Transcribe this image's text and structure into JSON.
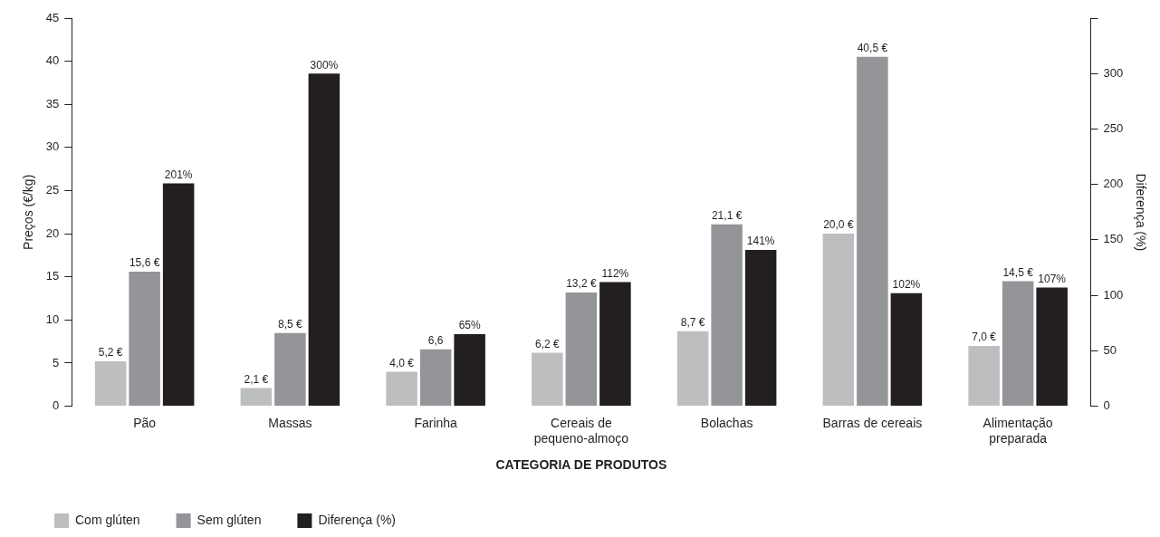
{
  "chart_data": {
    "type": "bar",
    "xlabel": "CATEGORIA DE PRODUTOS",
    "ylabel": "Preços (€/kg)",
    "y2label": "Diferença (%)",
    "categories": [
      "Pão",
      "Massas",
      "Farinha",
      "Cereais de\npequeno-almoço",
      "Bolachas",
      "Barras de cereais",
      "Alimentação\npreparada"
    ],
    "series": [
      {
        "name": "Com glúten",
        "color": "#bcbec0",
        "values": [
          5.2,
          2.1,
          4.0,
          6.2,
          8.7,
          20.0,
          7.0
        ],
        "value_labels": [
          "5,2 €",
          "2,1 €",
          "4,0 €",
          "6,2 €",
          "8,7 €",
          "20,0 €",
          "7,0 €"
        ]
      },
      {
        "name": "Sem glúten",
        "color": "#939598",
        "values": [
          15.6,
          8.5,
          6.6,
          13.2,
          21.1,
          40.5,
          14.5
        ],
        "value_labels": [
          "15,6 €",
          "8,5 €",
          "6,6",
          "13,2 €",
          "21,1 €",
          "40,5 €",
          "14,5 €"
        ]
      },
      {
        "name": "Diferença (%)",
        "color": "#231f20",
        "axis": "y2",
        "values": [
          201,
          300,
          65,
          112,
          141,
          102,
          107
        ],
        "value_labels": [
          "201%",
          "300%",
          "65%",
          "112%",
          "141%",
          "102%",
          "107%"
        ]
      }
    ],
    "ylim": [
      0,
      45
    ],
    "yticks": [
      0,
      5,
      10,
      15,
      20,
      25,
      30,
      35,
      40,
      45
    ],
    "y2lim": [
      0,
      350
    ],
    "y2ticks": [
      0,
      50,
      100,
      150,
      200,
      250,
      300,
      {
        "value": 350,
        "label": null
      }
    ],
    "grid": false,
    "legend": "bottom left"
  }
}
